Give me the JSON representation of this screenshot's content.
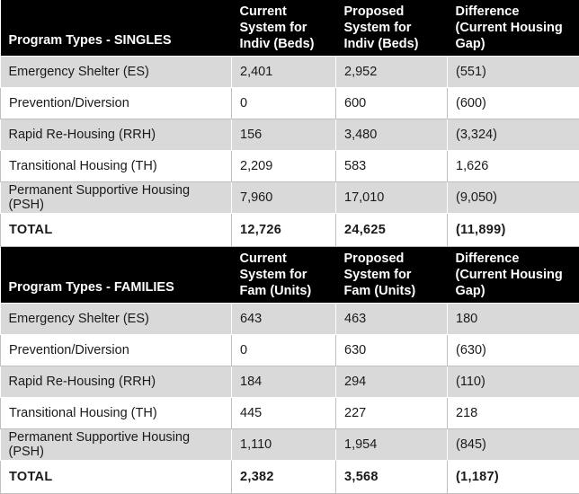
{
  "singles": {
    "headers": [
      "Program Types - SINGLES",
      "Current System for Indiv (Beds)",
      "Proposed System for Indiv (Beds)",
      "Difference (Current Housing Gap)"
    ],
    "rows": [
      [
        "Emergency Shelter (ES)",
        "2,401",
        "2,952",
        "(551)"
      ],
      [
        "Prevention/Diversion",
        "0",
        "600",
        "(600)"
      ],
      [
        "Rapid Re-Housing (RRH)",
        "156",
        "3,480",
        "(3,324)"
      ],
      [
        "Transitional Housing (TH)",
        "2,209",
        "583",
        "1,626"
      ],
      [
        "Permanent Supportive Housing (PSH)",
        "7,960",
        "17,010",
        "(9,050)"
      ]
    ],
    "total": [
      "TOTAL",
      "12,726",
      "24,625",
      "(11,899)"
    ]
  },
  "families": {
    "headers": [
      "Program Types - FAMILIES",
      "Current System for Fam (Units)",
      "Proposed System for Fam (Units)",
      "Difference (Current Housing Gap)"
    ],
    "rows": [
      [
        "Emergency Shelter (ES)",
        "643",
        "463",
        "180"
      ],
      [
        "Prevention/Diversion",
        "0",
        "630",
        "(630)"
      ],
      [
        "Rapid Re-Housing (RRH)",
        "184",
        "294",
        "(110)"
      ],
      [
        "Transitional Housing (TH)",
        "445",
        "227",
        "218"
      ],
      [
        "Permanent Supportive Housing (PSH)",
        "1,110",
        "1,954",
        "(845)"
      ]
    ],
    "total": [
      "TOTAL",
      "2,382",
      "3,568",
      "(1,187)"
    ]
  },
  "colors": {
    "header_bg": "#000000",
    "header_text": "#ffffff",
    "shaded_row": "#d9d9d9"
  }
}
